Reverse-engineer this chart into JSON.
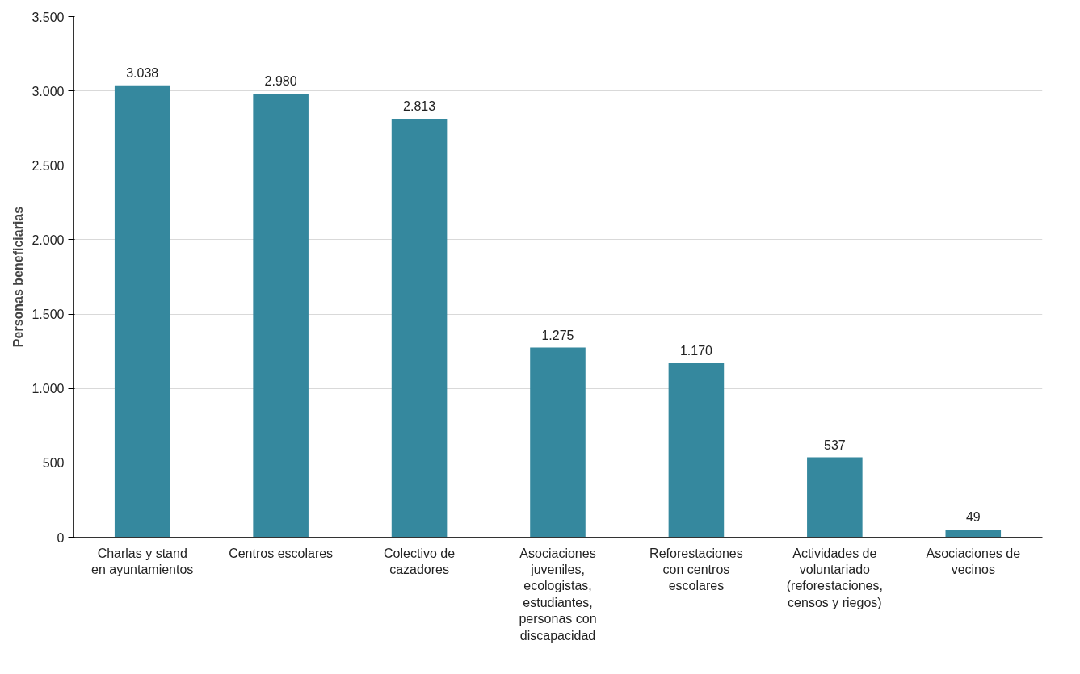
{
  "chart_data": {
    "type": "bar",
    "ylabel": "Personas beneficiarias",
    "categories": [
      "Charlas y stand en ayuntamientos",
      "Centros escolares",
      "Colectivo de cazadores",
      "Asociaciones juveniles, ecologistas, estudiantes, personas con discapacidad",
      "Reforestaciones con centros escolares",
      "Actividades de voluntariado (reforestaciones, censos y riegos)",
      "Asociaciones de vecinos"
    ],
    "values": [
      3038,
      2980,
      2813,
      1275,
      1170,
      537,
      49
    ],
    "value_labels": [
      "3.038",
      "2.980",
      "2.813",
      "1.275",
      "1.170",
      "537",
      "49"
    ],
    "color": "#35889e",
    "ylim": [
      0,
      3500
    ],
    "yticks": [
      0,
      {
        "value": 500,
        "label": "500"
      },
      {
        "value": 1000,
        "label": "1.000"
      },
      {
        "value": 1500,
        "label": "1.500"
      },
      {
        "value": 2000,
        "label": "2.000"
      },
      {
        "value": 2500,
        "label": "2.500"
      },
      {
        "value": 3000,
        "label": "3.000"
      },
      {
        "value": 3500,
        "label": "3.500"
      }
    ],
    "grid": "y"
  }
}
